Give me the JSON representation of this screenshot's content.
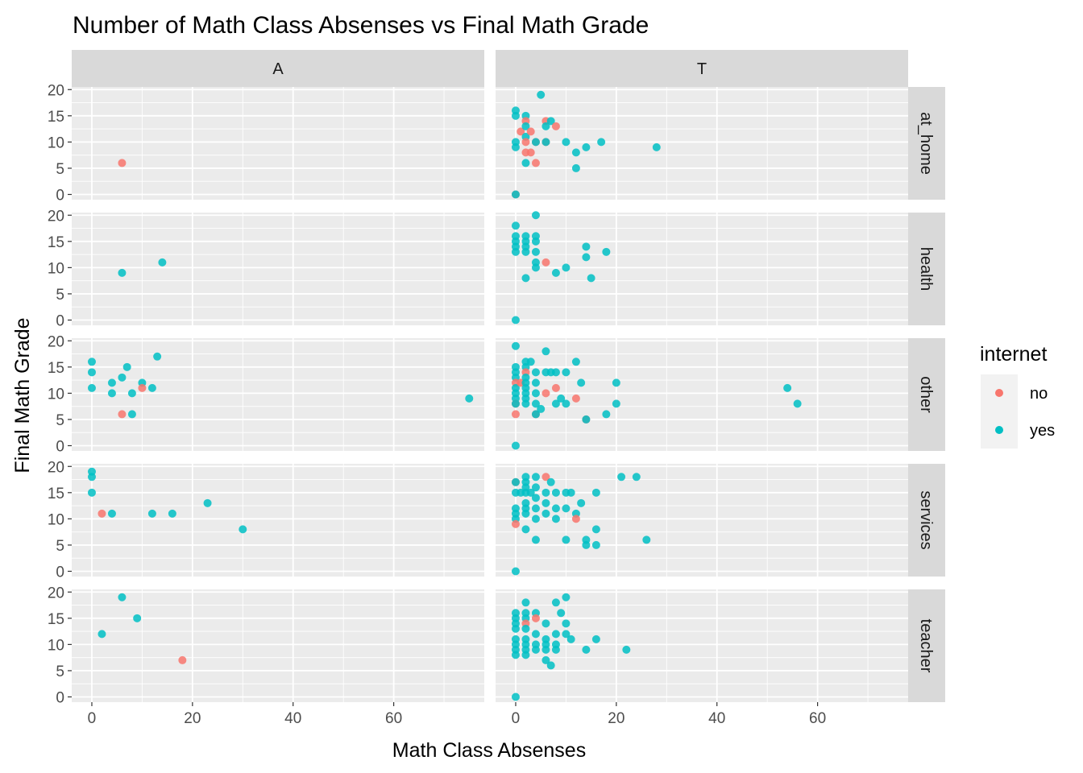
{
  "chart_data": {
    "type": "scatter",
    "title": "Number of Math Class Absenses vs Final Math Grade",
    "xlabel": "Math Class Absenses",
    "ylabel": "Final Math Grade",
    "xlim": [
      -4,
      78
    ],
    "ylim": [
      -1,
      20.5
    ],
    "xticks": [
      0,
      20,
      40,
      60
    ],
    "yticks": [
      0,
      5,
      10,
      15,
      20
    ],
    "grid": true,
    "legend": {
      "title": "internet",
      "position": "right",
      "entries": [
        {
          "key": "no",
          "label": "no",
          "color": "#F8766D"
        },
        {
          "key": "yes",
          "label": "yes",
          "color": "#00BFC4"
        }
      ]
    },
    "facet_cols": [
      "A",
      "T"
    ],
    "facet_rows": [
      "at_home",
      "health",
      "other",
      "services",
      "teacher"
    ],
    "panels": [
      {
        "row": "at_home",
        "col": "A",
        "points": [
          [
            6,
            6,
            "no"
          ]
        ]
      },
      {
        "row": "at_home",
        "col": "T",
        "points": [
          [
            0,
            16,
            "yes"
          ],
          [
            0,
            15,
            "yes"
          ],
          [
            0,
            10,
            "yes"
          ],
          [
            0,
            9,
            "yes"
          ],
          [
            0,
            0,
            "no"
          ],
          [
            0,
            0,
            "yes"
          ],
          [
            1,
            12,
            "no"
          ],
          [
            2,
            15,
            "yes"
          ],
          [
            2,
            14,
            "no"
          ],
          [
            2,
            13,
            "yes"
          ],
          [
            2,
            11,
            "yes"
          ],
          [
            2,
            10,
            "no"
          ],
          [
            2,
            8,
            "no"
          ],
          [
            2,
            6,
            "yes"
          ],
          [
            3,
            12,
            "no"
          ],
          [
            3,
            8,
            "no"
          ],
          [
            4,
            10,
            "no"
          ],
          [
            4,
            10,
            "yes"
          ],
          [
            4,
            6,
            "no"
          ],
          [
            5,
            19,
            "yes"
          ],
          [
            6,
            14,
            "no"
          ],
          [
            6,
            13,
            "yes"
          ],
          [
            6,
            10,
            "no"
          ],
          [
            6,
            10,
            "yes"
          ],
          [
            7,
            14,
            "yes"
          ],
          [
            8,
            13,
            "no"
          ],
          [
            10,
            10,
            "yes"
          ],
          [
            12,
            8,
            "yes"
          ],
          [
            12,
            5,
            "yes"
          ],
          [
            14,
            9,
            "yes"
          ],
          [
            17,
            10,
            "yes"
          ],
          [
            28,
            9,
            "yes"
          ]
        ]
      },
      {
        "row": "health",
        "col": "A",
        "points": [
          [
            6,
            9,
            "yes"
          ],
          [
            14,
            11,
            "yes"
          ]
        ]
      },
      {
        "row": "health",
        "col": "T",
        "points": [
          [
            0,
            18,
            "yes"
          ],
          [
            0,
            16,
            "yes"
          ],
          [
            0,
            15,
            "yes"
          ],
          [
            0,
            14,
            "yes"
          ],
          [
            0,
            13,
            "yes"
          ],
          [
            0,
            0,
            "yes"
          ],
          [
            2,
            16,
            "yes"
          ],
          [
            2,
            15,
            "yes"
          ],
          [
            2,
            14,
            "yes"
          ],
          [
            2,
            13,
            "yes"
          ],
          [
            2,
            8,
            "yes"
          ],
          [
            4,
            20,
            "yes"
          ],
          [
            4,
            16,
            "yes"
          ],
          [
            4,
            15,
            "yes"
          ],
          [
            4,
            13,
            "yes"
          ],
          [
            4,
            11,
            "yes"
          ],
          [
            4,
            10,
            "yes"
          ],
          [
            6,
            11,
            "no"
          ],
          [
            8,
            9,
            "yes"
          ],
          [
            10,
            10,
            "yes"
          ],
          [
            14,
            14,
            "yes"
          ],
          [
            14,
            12,
            "yes"
          ],
          [
            15,
            8,
            "yes"
          ],
          [
            18,
            13,
            "yes"
          ]
        ]
      },
      {
        "row": "other",
        "col": "A",
        "points": [
          [
            0,
            16,
            "yes"
          ],
          [
            0,
            14,
            "yes"
          ],
          [
            0,
            11,
            "yes"
          ],
          [
            4,
            12,
            "yes"
          ],
          [
            4,
            10,
            "yes"
          ],
          [
            6,
            13,
            "yes"
          ],
          [
            6,
            6,
            "no"
          ],
          [
            7,
            15,
            "yes"
          ],
          [
            8,
            10,
            "yes"
          ],
          [
            8,
            6,
            "yes"
          ],
          [
            10,
            12,
            "yes"
          ],
          [
            10,
            11,
            "no"
          ],
          [
            12,
            11,
            "yes"
          ],
          [
            13,
            17,
            "yes"
          ],
          [
            75,
            9,
            "yes"
          ]
        ]
      },
      {
        "row": "other",
        "col": "T",
        "points": [
          [
            0,
            19,
            "yes"
          ],
          [
            0,
            15,
            "yes"
          ],
          [
            0,
            14,
            "yes"
          ],
          [
            0,
            13,
            "yes"
          ],
          [
            0,
            12,
            "no"
          ],
          [
            0,
            11,
            "yes"
          ],
          [
            0,
            10,
            "yes"
          ],
          [
            0,
            9,
            "yes"
          ],
          [
            0,
            8,
            "no"
          ],
          [
            0,
            8,
            "yes"
          ],
          [
            0,
            6,
            "no"
          ],
          [
            0,
            0,
            "yes"
          ],
          [
            1,
            12,
            "no"
          ],
          [
            2,
            16,
            "yes"
          ],
          [
            2,
            15,
            "yes"
          ],
          [
            2,
            14,
            "no"
          ],
          [
            2,
            13,
            "yes"
          ],
          [
            2,
            12,
            "yes"
          ],
          [
            2,
            11,
            "yes"
          ],
          [
            2,
            10,
            "yes"
          ],
          [
            2,
            9,
            "yes"
          ],
          [
            2,
            8,
            "yes"
          ],
          [
            3,
            16,
            "yes"
          ],
          [
            4,
            14,
            "yes"
          ],
          [
            4,
            12,
            "yes"
          ],
          [
            4,
            10,
            "yes"
          ],
          [
            4,
            8,
            "yes"
          ],
          [
            4,
            6,
            "no"
          ],
          [
            4,
            6,
            "yes"
          ],
          [
            5,
            7,
            "yes"
          ],
          [
            6,
            18,
            "yes"
          ],
          [
            6,
            14,
            "yes"
          ],
          [
            6,
            10,
            "no"
          ],
          [
            7,
            14,
            "yes"
          ],
          [
            8,
            14,
            "yes"
          ],
          [
            8,
            11,
            "no"
          ],
          [
            8,
            8,
            "yes"
          ],
          [
            9,
            9,
            "yes"
          ],
          [
            10,
            14,
            "yes"
          ],
          [
            10,
            8,
            "yes"
          ],
          [
            12,
            16,
            "yes"
          ],
          [
            12,
            9,
            "no"
          ],
          [
            13,
            12,
            "yes"
          ],
          [
            14,
            5,
            "no"
          ],
          [
            14,
            5,
            "yes"
          ],
          [
            18,
            6,
            "yes"
          ],
          [
            20,
            12,
            "yes"
          ],
          [
            20,
            8,
            "yes"
          ],
          [
            54,
            11,
            "yes"
          ],
          [
            56,
            8,
            "yes"
          ]
        ]
      },
      {
        "row": "services",
        "col": "A",
        "points": [
          [
            0,
            19,
            "yes"
          ],
          [
            0,
            18,
            "yes"
          ],
          [
            0,
            15,
            "yes"
          ],
          [
            2,
            11,
            "no"
          ],
          [
            4,
            11,
            "yes"
          ],
          [
            12,
            11,
            "yes"
          ],
          [
            16,
            11,
            "yes"
          ],
          [
            23,
            13,
            "yes"
          ],
          [
            30,
            8,
            "yes"
          ]
        ]
      },
      {
        "row": "services",
        "col": "T",
        "points": [
          [
            0,
            17,
            "no"
          ],
          [
            0,
            17,
            "yes"
          ],
          [
            0,
            15,
            "yes"
          ],
          [
            0,
            12,
            "yes"
          ],
          [
            0,
            11,
            "yes"
          ],
          [
            0,
            10,
            "yes"
          ],
          [
            0,
            9,
            "no"
          ],
          [
            0,
            0,
            "yes"
          ],
          [
            1,
            15,
            "yes"
          ],
          [
            2,
            18,
            "yes"
          ],
          [
            2,
            17,
            "yes"
          ],
          [
            2,
            16,
            "yes"
          ],
          [
            2,
            15,
            "yes"
          ],
          [
            2,
            13,
            "yes"
          ],
          [
            2,
            12,
            "yes"
          ],
          [
            2,
            11,
            "yes"
          ],
          [
            2,
            8,
            "yes"
          ],
          [
            3,
            15,
            "yes"
          ],
          [
            4,
            18,
            "yes"
          ],
          [
            4,
            16,
            "yes"
          ],
          [
            4,
            14,
            "yes"
          ],
          [
            4,
            12,
            "yes"
          ],
          [
            4,
            10,
            "yes"
          ],
          [
            4,
            6,
            "yes"
          ],
          [
            6,
            18,
            "no"
          ],
          [
            6,
            15,
            "yes"
          ],
          [
            6,
            13,
            "yes"
          ],
          [
            6,
            11,
            "yes"
          ],
          [
            7,
            17,
            "yes"
          ],
          [
            8,
            15,
            "yes"
          ],
          [
            8,
            12,
            "yes"
          ],
          [
            8,
            10,
            "yes"
          ],
          [
            10,
            15,
            "yes"
          ],
          [
            10,
            12,
            "yes"
          ],
          [
            10,
            6,
            "yes"
          ],
          [
            11,
            15,
            "yes"
          ],
          [
            12,
            11,
            "yes"
          ],
          [
            12,
            10,
            "no"
          ],
          [
            13,
            13,
            "yes"
          ],
          [
            14,
            6,
            "yes"
          ],
          [
            14,
            5,
            "yes"
          ],
          [
            16,
            15,
            "yes"
          ],
          [
            16,
            8,
            "yes"
          ],
          [
            16,
            5,
            "yes"
          ],
          [
            21,
            18,
            "yes"
          ],
          [
            24,
            18,
            "yes"
          ],
          [
            26,
            6,
            "yes"
          ]
        ]
      },
      {
        "row": "teacher",
        "col": "A",
        "points": [
          [
            2,
            12,
            "yes"
          ],
          [
            6,
            19,
            "yes"
          ],
          [
            9,
            15,
            "yes"
          ],
          [
            18,
            7,
            "no"
          ]
        ]
      },
      {
        "row": "teacher",
        "col": "T",
        "points": [
          [
            0,
            16,
            "yes"
          ],
          [
            0,
            15,
            "yes"
          ],
          [
            0,
            14,
            "yes"
          ],
          [
            0,
            13,
            "yes"
          ],
          [
            0,
            11,
            "yes"
          ],
          [
            0,
            10,
            "yes"
          ],
          [
            0,
            9,
            "yes"
          ],
          [
            0,
            8,
            "yes"
          ],
          [
            0,
            0,
            "yes"
          ],
          [
            2,
            18,
            "yes"
          ],
          [
            2,
            16,
            "yes"
          ],
          [
            2,
            15,
            "yes"
          ],
          [
            2,
            14,
            "no"
          ],
          [
            2,
            13,
            "yes"
          ],
          [
            2,
            11,
            "yes"
          ],
          [
            2,
            10,
            "yes"
          ],
          [
            2,
            9,
            "yes"
          ],
          [
            2,
            8,
            "yes"
          ],
          [
            4,
            16,
            "yes"
          ],
          [
            4,
            15,
            "no"
          ],
          [
            4,
            12,
            "yes"
          ],
          [
            4,
            10,
            "yes"
          ],
          [
            4,
            9,
            "yes"
          ],
          [
            6,
            14,
            "yes"
          ],
          [
            6,
            11,
            "yes"
          ],
          [
            6,
            10,
            "yes"
          ],
          [
            6,
            9,
            "yes"
          ],
          [
            6,
            7,
            "yes"
          ],
          [
            7,
            6,
            "yes"
          ],
          [
            8,
            18,
            "yes"
          ],
          [
            8,
            12,
            "yes"
          ],
          [
            8,
            10,
            "yes"
          ],
          [
            8,
            9,
            "yes"
          ],
          [
            9,
            16,
            "yes"
          ],
          [
            10,
            19,
            "yes"
          ],
          [
            10,
            14,
            "yes"
          ],
          [
            10,
            12,
            "yes"
          ],
          [
            11,
            11,
            "yes"
          ],
          [
            14,
            9,
            "yes"
          ],
          [
            16,
            11,
            "yes"
          ],
          [
            22,
            9,
            "yes"
          ]
        ]
      }
    ]
  }
}
